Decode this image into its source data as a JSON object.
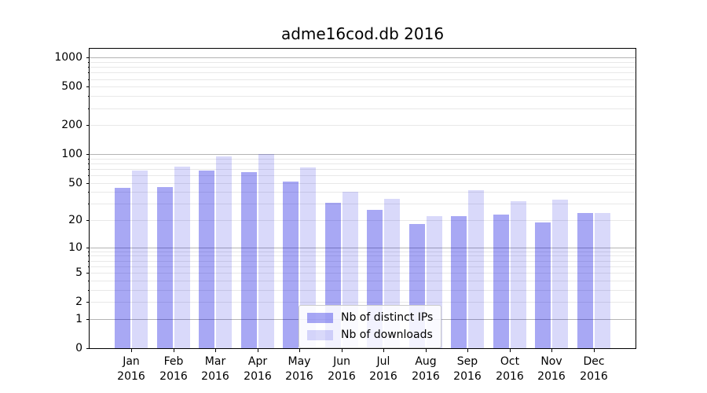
{
  "chart_data": {
    "type": "bar",
    "title": "adme16cod.db 2016",
    "categories": [
      "Jan",
      "Feb",
      "Mar",
      "Apr",
      "May",
      "Jun",
      "Jul",
      "Aug",
      "Sep",
      "Oct",
      "Nov",
      "Dec"
    ],
    "year_label": "2016",
    "series": [
      {
        "name": "Nb of distinct IPs",
        "color": "rgba(0,0,224,0.34)",
        "values": [
          44,
          45,
          67,
          65,
          52,
          31,
          26,
          18,
          22,
          23,
          19,
          24
        ]
      },
      {
        "name": "Nb of downloads",
        "color": "rgba(0,0,224,0.15)",
        "values": [
          67,
          74,
          95,
          100,
          73,
          40,
          34,
          22,
          42,
          32,
          33,
          24
        ]
      }
    ],
    "xlabel": "",
    "ylabel": "",
    "yscale": "log1p",
    "ylim": [
      0,
      1233
    ],
    "yticks": [
      0,
      1,
      2,
      5,
      10,
      20,
      50,
      100,
      200,
      500,
      1000
    ],
    "grid": {
      "major": [
        1,
        10,
        100,
        1000
      ],
      "minor": [
        2,
        3,
        4,
        5,
        6,
        7,
        8,
        9,
        20,
        30,
        40,
        50,
        60,
        70,
        80,
        90,
        200,
        300,
        400,
        500,
        600,
        700,
        800,
        900
      ]
    },
    "legend_position": "lower center"
  },
  "colors": {
    "ips_bar_rendered": "#aaaaf5",
    "downloads_bar_rendered": "#d9d9f8",
    "major_grid": "#b4b4b4",
    "minor_grid": "#e8e8e8",
    "spine": "#000000",
    "legend_border": "#cccccc"
  }
}
